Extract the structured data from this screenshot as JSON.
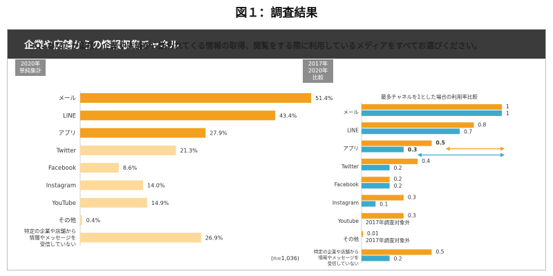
{
  "page": {
    "figure_title": "図１：調査結果",
    "header_title": "企業や店舗からの情報収集チャネル",
    "question": "Q. あなたが普段、企業や店舗から送られてくる情報の取得、閲覧をする際に利用しているメディアをすべてお選びください。"
  },
  "colors": {
    "header_bg": "#3b3b3b",
    "orange": "#f2a01e",
    "light_orange": "#fdd99a",
    "blue": "#3caacc",
    "tag_bg": "#8c8c8c",
    "arrow_orange": "#f2a01e",
    "arrow_blue": "#3caacc"
  },
  "chart_data": [
    {
      "type": "bar",
      "orientation": "horizontal",
      "tag": [
        "2020年",
        "単純集計"
      ],
      "categories": [
        "メール",
        "LINE",
        "アプリ",
        "Twitter",
        "Facebook",
        "Instagram",
        "YouTube",
        "その他",
        "特定の企業や店舗から|情報やメッセージを|受信していない"
      ],
      "values": [
        51.4,
        43.4,
        27.9,
        21.3,
        8.6,
        14.0,
        14.9,
        0.4,
        26.9
      ],
      "value_labels": [
        "51.4%",
        "43.4%",
        "27.9%",
        "21.3%",
        "8.6%",
        "14.0%",
        "14.9%",
        "0.4%",
        "26.9%"
      ],
      "highlight": [
        true,
        true,
        true,
        false,
        false,
        false,
        false,
        false,
        false
      ],
      "note": "(n=1,036)",
      "xlim": [
        0,
        60
      ]
    },
    {
      "type": "bar",
      "orientation": "horizontal",
      "title": "最多チャネルを1とした場合の利用率比較",
      "tag": [
        "2017年",
        "2020年",
        "比較"
      ],
      "categories": [
        "メール",
        "LINE",
        "アプリ",
        "Twitter",
        "Facebook",
        "Instagram",
        "Youtube",
        "その他",
        "特定の企業や店舗から|情報やメッセージを|受信していない"
      ],
      "series": [
        {
          "name": "2017年",
          "values": [
            1,
            0.8,
            0.5,
            0.4,
            0.2,
            0.3,
            0.3,
            0.01,
            0.5
          ],
          "labels": [
            "1",
            "0.8",
            "0.5",
            "0.4",
            "0.2",
            "0.3",
            "0.3",
            "0.01",
            "0.5"
          ]
        },
        {
          "name": "2020年",
          "values": [
            1,
            0.7,
            0.3,
            0.2,
            0.2,
            0.1,
            null,
            null,
            0.2
          ],
          "labels": [
            "1",
            "0.7",
            "0.3",
            "0.2",
            "0.2",
            "0.1",
            "2017年調査対象外",
            "2017年調査対象外",
            "0.2"
          ]
        }
      ],
      "bold_labels": [
        "0.5",
        "0.3"
      ],
      "annotations": [
        "アプリ: 0.5 → 0.3 の差を示す双方向矢印"
      ],
      "xlim": [
        0,
        1
      ]
    }
  ]
}
